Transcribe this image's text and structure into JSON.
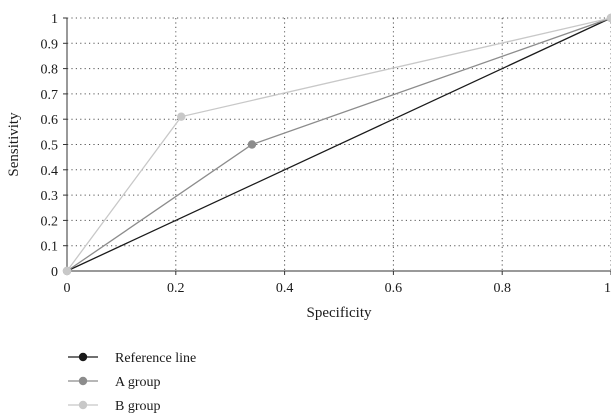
{
  "chart_data": {
    "type": "line",
    "title": "",
    "xlabel": "Specificity",
    "ylabel": "Sensitivity",
    "xlim": [
      0,
      1
    ],
    "ylim": [
      0,
      1
    ],
    "x_ticks": [
      {
        "value": 0,
        "label": "0"
      },
      {
        "value": 0.2,
        "label": "0.2"
      },
      {
        "value": 0.4,
        "label": "0.4"
      },
      {
        "value": 0.6,
        "label": "0.6"
      },
      {
        "value": 0.8,
        "label": "0.8"
      },
      {
        "value": 1,
        "label": "1"
      }
    ],
    "y_ticks": [
      {
        "value": 0,
        "label": "0"
      },
      {
        "value": 0.1,
        "label": "0.1"
      },
      {
        "value": 0.2,
        "label": "0.2"
      },
      {
        "value": 0.3,
        "label": "0.3"
      },
      {
        "value": 0.4,
        "label": "0.4"
      },
      {
        "value": 0.5,
        "label": "0.5"
      },
      {
        "value": 0.6,
        "label": "0.6"
      },
      {
        "value": 0.7,
        "label": "0.7"
      },
      {
        "value": 0.8,
        "label": "0.8"
      },
      {
        "value": 0.9,
        "label": "0.9"
      },
      {
        "value": 1,
        "label": "1"
      }
    ],
    "grid": "dotted",
    "legend_position": "bottom-left",
    "series": [
      {
        "name": "Reference line",
        "color": "#1a1a1a",
        "points": [
          {
            "x": 0,
            "y": 0
          },
          {
            "x": 1,
            "y": 1
          }
        ]
      },
      {
        "name": "A group",
        "color": "#8c8c8c",
        "points": [
          {
            "x": 0,
            "y": 0
          },
          {
            "x": 0.34,
            "y": 0.5
          },
          {
            "x": 1,
            "y": 1
          }
        ]
      },
      {
        "name": "B group",
        "color": "#c8c8c8",
        "points": [
          {
            "x": 0,
            "y": 0
          },
          {
            "x": 0.21,
            "y": 0.61
          },
          {
            "x": 1,
            "y": 1
          }
        ]
      }
    ]
  }
}
